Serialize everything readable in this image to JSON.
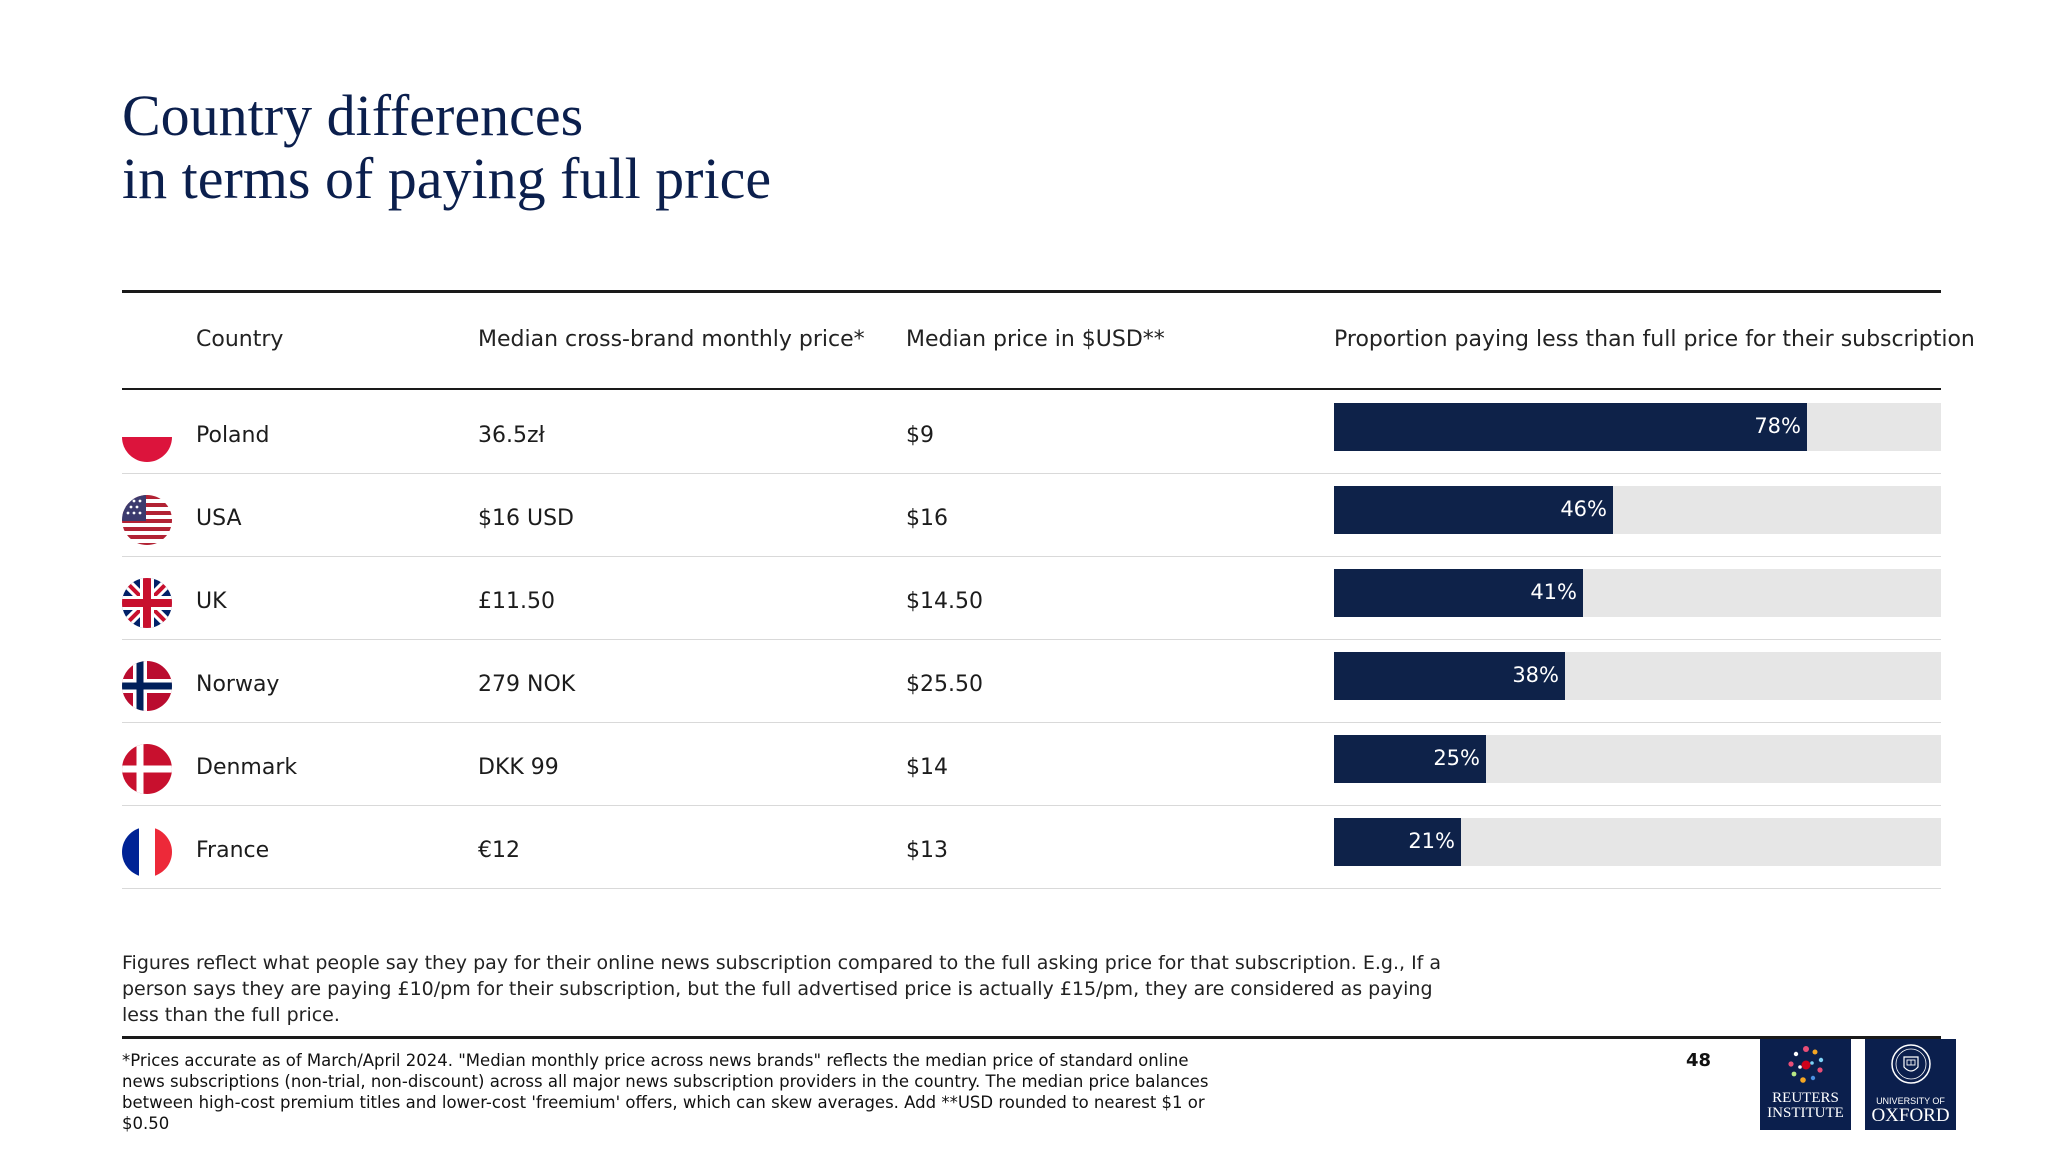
{
  "title_lines": [
    "Country differences",
    "in terms of paying full price"
  ],
  "table": {
    "headers": {
      "country": "Country",
      "local_price": "Median cross-brand monthly price*",
      "usd_price": "Median price in $USD**",
      "proportion": "Proportion paying less than full price for their subscription"
    }
  },
  "chart_data": {
    "type": "bar",
    "orientation": "horizontal",
    "title": "",
    "categories": [
      "Poland",
      "USA",
      "UK",
      "Norway",
      "Denmark",
      "France"
    ],
    "series": [
      {
        "name": "Proportion paying less than full price for their subscription",
        "values": [
          78,
          46,
          41,
          38,
          25,
          21
        ]
      }
    ],
    "value_labels": [
      "78%",
      "46%",
      "41%",
      "38%",
      "25%",
      "21%"
    ],
    "xlim": [
      0,
      100
    ],
    "unit": "%",
    "bar_color": "#0e2249",
    "track_color": "#e6e6e6",
    "grid": false,
    "legend": "none"
  },
  "rows": [
    {
      "flag_icon": "poland-flag-icon",
      "country": "Poland",
      "local_price": "36.5zł",
      "usd_price": "$9"
    },
    {
      "flag_icon": "usa-flag-icon",
      "country": "USA",
      "local_price": "$16 USD",
      "usd_price": "$16"
    },
    {
      "flag_icon": "uk-flag-icon",
      "country": "UK",
      "local_price": "£11.50",
      "usd_price": "$14.50"
    },
    {
      "flag_icon": "norway-flag-icon",
      "country": "Norway",
      "local_price": "279 NOK",
      "usd_price": "$25.50"
    },
    {
      "flag_icon": "denmark-flag-icon",
      "country": "Denmark",
      "local_price": "DKK 99",
      "usd_price": "$14"
    },
    {
      "flag_icon": "france-flag-icon",
      "country": "France",
      "local_price": "€12",
      "usd_price": "$13"
    }
  ],
  "note": "Figures reflect what people say they pay for their online news subscription compared to the full asking price for that subscription. E.g., If a person says they are paying £10/pm for their subscription, but the full advertised price is actually £15/pm, they are considered as paying less than the full price.",
  "footnote": "*Prices accurate as of March/April 2024. \"Median monthly price across news brands\" reflects the median price of standard online news subscriptions (non-trial, non-discount) across all major news subscription providers in the country. The median price balances between high-cost premium titles and lower-cost 'freemium' offers, which can skew averages. Add **USD rounded to nearest $1 or $0.50",
  "page_number": "48",
  "logos": {
    "reuters": {
      "line1": "REUTERS",
      "line2": "INSTITUTE",
      "icon": "reuters-dots-icon"
    },
    "oxford": {
      "line1": "UNIVERSITY OF",
      "line2": "OXFORD",
      "icon": "oxford-crest-icon"
    }
  },
  "colors": {
    "title": "#0b1f4d",
    "logo_bg": "#0b1f4d"
  }
}
